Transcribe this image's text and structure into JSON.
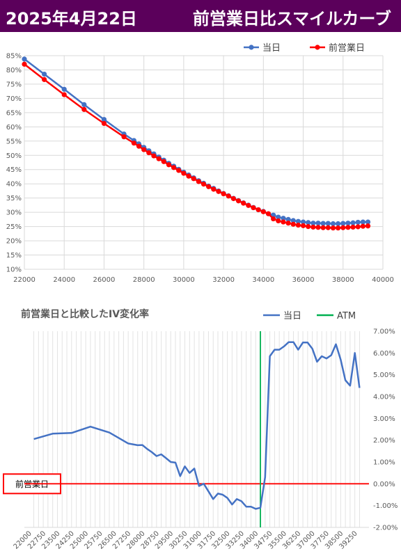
{
  "header": {
    "date": "2025年4月22日",
    "title": "前営業日比スマイルカーブ",
    "background": "#5b005b"
  },
  "chart_data": [
    {
      "type": "line",
      "title": "",
      "xlabel": "",
      "ylabel": "",
      "xlim": [
        22000,
        40000
      ],
      "ylim": [
        0.1,
        0.85
      ],
      "x_ticks": [
        "22000",
        "24000",
        "26000",
        "28000",
        "30000",
        "32000",
        "34000",
        "36000",
        "38000",
        "40000"
      ],
      "y_ticks": [
        "10%",
        "15%",
        "20%",
        "25%",
        "30%",
        "35%",
        "40%",
        "45%",
        "50%",
        "55%",
        "60%",
        "65%",
        "70%",
        "75%",
        "80%",
        "85%"
      ],
      "grid": true,
      "legend": "top-right",
      "markers": true,
      "series": [
        {
          "name": "当日",
          "color": "#4472c4",
          "points": [
            [
              22000,
              0.838
            ],
            [
              23000,
              0.785
            ],
            [
              24000,
              0.732
            ],
            [
              25000,
              0.678
            ],
            [
              26000,
              0.626
            ],
            [
              27000,
              0.575
            ],
            [
              27500,
              0.552
            ],
            [
              27750,
              0.54
            ],
            [
              28000,
              0.528
            ],
            [
              28250,
              0.516
            ],
            [
              28500,
              0.505
            ],
            [
              28750,
              0.494
            ],
            [
              29000,
              0.483
            ],
            [
              29250,
              0.472
            ],
            [
              29500,
              0.462
            ],
            [
              29750,
              0.451
            ],
            [
              30000,
              0.441
            ],
            [
              30250,
              0.431
            ],
            [
              30500,
              0.421
            ],
            [
              30750,
              0.411
            ],
            [
              31000,
              0.402
            ],
            [
              31250,
              0.392
            ],
            [
              31500,
              0.384
            ],
            [
              31750,
              0.375
            ],
            [
              32000,
              0.366
            ],
            [
              32250,
              0.358
            ],
            [
              32500,
              0.349
            ],
            [
              32750,
              0.341
            ],
            [
              33000,
              0.333
            ],
            [
              33250,
              0.325
            ],
            [
              33500,
              0.317
            ],
            [
              33750,
              0.309
            ],
            [
              34000,
              0.303
            ],
            [
              34250,
              0.295
            ],
            [
              34500,
              0.29
            ],
            [
              34750,
              0.283
            ],
            [
              35000,
              0.279
            ],
            [
              35250,
              0.275
            ],
            [
              35500,
              0.271
            ],
            [
              35750,
              0.268
            ],
            [
              36000,
              0.266
            ],
            [
              36250,
              0.264
            ],
            [
              36500,
              0.262
            ],
            [
              36750,
              0.262
            ],
            [
              37000,
              0.261
            ],
            [
              37250,
              0.261
            ],
            [
              37500,
              0.26
            ],
            [
              37750,
              0.26
            ],
            [
              38000,
              0.261
            ],
            [
              38250,
              0.262
            ],
            [
              38500,
              0.263
            ],
            [
              38750,
              0.265
            ],
            [
              39000,
              0.266
            ],
            [
              39250,
              0.266
            ]
          ]
        },
        {
          "name": "前営業日",
          "color": "#ff0000",
          "points": [
            [
              22000,
              0.82
            ],
            [
              23000,
              0.766
            ],
            [
              24000,
              0.713
            ],
            [
              25000,
              0.661
            ],
            [
              26000,
              0.612
            ],
            [
              27000,
              0.565
            ],
            [
              27500,
              0.543
            ],
            [
              27750,
              0.532
            ],
            [
              28000,
              0.52
            ],
            [
              28250,
              0.509
            ],
            [
              28500,
              0.498
            ],
            [
              28750,
              0.488
            ],
            [
              29000,
              0.478
            ],
            [
              29250,
              0.467
            ],
            [
              29500,
              0.457
            ],
            [
              29750,
              0.447
            ],
            [
              30000,
              0.437
            ],
            [
              30250,
              0.427
            ],
            [
              30500,
              0.418
            ],
            [
              30750,
              0.408
            ],
            [
              31000,
              0.399
            ],
            [
              31250,
              0.39
            ],
            [
              31500,
              0.381
            ],
            [
              31750,
              0.373
            ],
            [
              32000,
              0.365
            ],
            [
              32250,
              0.357
            ],
            [
              32500,
              0.348
            ],
            [
              32750,
              0.34
            ],
            [
              33000,
              0.332
            ],
            [
              33250,
              0.324
            ],
            [
              33500,
              0.316
            ],
            [
              33750,
              0.309
            ],
            [
              34000,
              0.302
            ],
            [
              34250,
              0.295
            ],
            [
              34500,
              0.277
            ],
            [
              34750,
              0.27
            ],
            [
              35000,
              0.266
            ],
            [
              35250,
              0.262
            ],
            [
              35500,
              0.258
            ],
            [
              35750,
              0.255
            ],
            [
              36000,
              0.253
            ],
            [
              36250,
              0.25
            ],
            [
              36500,
              0.248
            ],
            [
              36750,
              0.247
            ],
            [
              37000,
              0.246
            ],
            [
              37250,
              0.246
            ],
            [
              37500,
              0.245
            ],
            [
              37750,
              0.245
            ],
            [
              38000,
              0.246
            ],
            [
              38250,
              0.247
            ],
            [
              38500,
              0.248
            ],
            [
              38750,
              0.249
            ],
            [
              39000,
              0.251
            ],
            [
              39250,
              0.252
            ]
          ]
        }
      ]
    },
    {
      "type": "line",
      "title": "前営業日と比較したIV変化率",
      "xlabel": "",
      "ylabel": "",
      "ylim": [
        -0.02,
        0.07
      ],
      "y_axis_side": "right",
      "y_ticks": [
        "7.00%",
        "6.00%",
        "5.00%",
        "4.00%",
        "3.00%",
        "2.00%",
        "1.00%",
        "0.00%",
        "-1.00%",
        "-2.00%"
      ],
      "x_tick_labels": [
        "22000",
        "22750",
        "23500",
        "24250",
        "25000",
        "25750",
        "26500",
        "27250",
        "28000",
        "28750",
        "29500",
        "30250",
        "31000",
        "31750",
        "32500",
        "33250",
        "34000",
        "34750",
        "35500",
        "36250",
        "37000",
        "37750",
        "38500",
        "39250"
      ],
      "legend": "top-right",
      "grid": "vertical",
      "atm_strike": 34000,
      "atm_name": "ATM",
      "atm_color": "#00b050",
      "zero_line_color": "#ff0000",
      "zero_label": "前営業日",
      "series": [
        {
          "name": "当日",
          "color": "#4472c4",
          "points": [
            [
              22000,
              0.0205
            ],
            [
              23000,
              0.023
            ],
            [
              24000,
              0.0233
            ],
            [
              25000,
              0.0262
            ],
            [
              26000,
              0.0235
            ],
            [
              27000,
              0.0185
            ],
            [
              27500,
              0.0177
            ],
            [
              27750,
              0.0178
            ],
            [
              28000,
              0.016
            ],
            [
              28250,
              0.0145
            ],
            [
              28500,
              0.0127
            ],
            [
              28750,
              0.0135
            ],
            [
              29000,
              0.0118
            ],
            [
              29250,
              0.01
            ],
            [
              29500,
              0.0097
            ],
            [
              29750,
              0.0035
            ],
            [
              30000,
              0.008
            ],
            [
              30250,
              0.005
            ],
            [
              30500,
              0.007
            ],
            [
              30750,
              -0.001
            ],
            [
              31000,
              0.0
            ],
            [
              31250,
              -0.0035
            ],
            [
              31500,
              -0.007
            ],
            [
              31750,
              -0.0045
            ],
            [
              32000,
              -0.005
            ],
            [
              32250,
              -0.0065
            ],
            [
              32500,
              -0.0095
            ],
            [
              32750,
              -0.007
            ],
            [
              33000,
              -0.008
            ],
            [
              33250,
              -0.0105
            ],
            [
              33500,
              -0.0105
            ],
            [
              33750,
              -0.0115
            ],
            [
              34000,
              -0.011
            ],
            [
              34250,
              0.003
            ],
            [
              34500,
              0.0585
            ],
            [
              34750,
              0.0615
            ],
            [
              35000,
              0.0615
            ],
            [
              35250,
              0.063
            ],
            [
              35500,
              0.065
            ],
            [
              35750,
              0.065
            ],
            [
              36000,
              0.0615
            ],
            [
              36250,
              0.0648
            ],
            [
              36500,
              0.0648
            ],
            [
              36750,
              0.062
            ],
            [
              37000,
              0.056
            ],
            [
              37250,
              0.0585
            ],
            [
              37500,
              0.0575
            ],
            [
              37750,
              0.059
            ],
            [
              38000,
              0.064
            ],
            [
              38250,
              0.057
            ],
            [
              38500,
              0.0475
            ],
            [
              38750,
              0.045
            ],
            [
              39000,
              0.06
            ],
            [
              39250,
              0.044
            ]
          ]
        }
      ]
    }
  ]
}
